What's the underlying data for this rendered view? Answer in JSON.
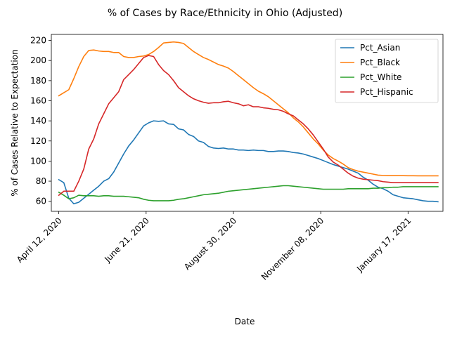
{
  "chart_data": {
    "type": "line",
    "title": "% of Cases by Race/Ethnicity in Ohio (Adjusted)",
    "xlabel": "Date",
    "ylabel": "% of Cases Relative to Expectation",
    "x_range": [
      "2020-04-06",
      "2021-02-14"
    ],
    "ylim": [
      50,
      226
    ],
    "grid": false,
    "legend_position": "top-right",
    "x_ticks": [
      {
        "date": "2020-04-12",
        "label": "April 12, 2020"
      },
      {
        "date": "2020-06-21",
        "label": "June 21, 2020"
      },
      {
        "date": "2020-08-30",
        "label": "August 30, 2020"
      },
      {
        "date": "2020-11-08",
        "label": "November 08, 2020"
      },
      {
        "date": "2021-01-17",
        "label": "January 17, 2021"
      }
    ],
    "y_ticks": [
      60,
      80,
      100,
      120,
      140,
      160,
      180,
      200,
      220
    ],
    "x": [
      "2020-04-12",
      "2020-04-16",
      "2020-04-20",
      "2020-04-24",
      "2020-04-28",
      "2020-05-02",
      "2020-05-06",
      "2020-05-10",
      "2020-05-14",
      "2020-05-18",
      "2020-05-22",
      "2020-05-26",
      "2020-05-30",
      "2020-06-03",
      "2020-06-07",
      "2020-06-11",
      "2020-06-15",
      "2020-06-19",
      "2020-06-23",
      "2020-06-27",
      "2020-07-01",
      "2020-07-05",
      "2020-07-09",
      "2020-07-13",
      "2020-07-17",
      "2020-07-21",
      "2020-07-25",
      "2020-07-29",
      "2020-08-02",
      "2020-08-06",
      "2020-08-10",
      "2020-08-14",
      "2020-08-18",
      "2020-08-22",
      "2020-08-26",
      "2020-08-30",
      "2020-09-03",
      "2020-09-07",
      "2020-09-11",
      "2020-09-15",
      "2020-09-19",
      "2020-09-23",
      "2020-09-27",
      "2020-10-01",
      "2020-10-05",
      "2020-10-09",
      "2020-10-13",
      "2020-10-17",
      "2020-10-21",
      "2020-10-25",
      "2020-10-29",
      "2020-11-02",
      "2020-11-06",
      "2020-11-10",
      "2020-11-14",
      "2020-11-18",
      "2020-11-22",
      "2020-11-26",
      "2020-11-30",
      "2020-12-04",
      "2020-12-08",
      "2020-12-12",
      "2020-12-16",
      "2020-12-20",
      "2020-12-24",
      "2020-12-28",
      "2021-01-01",
      "2021-01-05",
      "2021-01-09",
      "2021-01-13",
      "2021-01-17",
      "2021-01-21",
      "2021-01-25",
      "2021-01-29",
      "2021-02-02",
      "2021-02-06",
      "2021-02-10"
    ],
    "series": [
      {
        "name": "Pct_Asian",
        "color": "#1f77b4",
        "values": [
          81.5,
          78.5,
          63,
          57.5,
          59,
          63,
          67,
          71,
          75,
          80,
          82.5,
          89,
          98,
          107,
          115,
          121,
          128,
          135,
          138,
          140,
          139.5,
          140,
          137,
          136.5,
          132,
          131,
          126.5,
          124.5,
          120,
          118.5,
          114.5,
          113,
          112.5,
          113,
          112,
          112,
          111,
          111,
          110.5,
          111,
          110.5,
          110.5,
          109.5,
          109.5,
          110,
          110,
          109.5,
          108.5,
          108,
          107,
          105.5,
          104,
          102.5,
          100.5,
          98.5,
          96.5,
          95,
          93.5,
          92,
          90,
          88,
          84,
          81,
          77,
          74,
          72.5,
          70,
          66.5,
          65,
          63.5,
          63,
          62.5,
          61.5,
          60.5,
          60,
          60,
          59.5
        ]
      },
      {
        "name": "Pct_Black",
        "color": "#ff7f0e",
        "values": [
          165,
          168,
          171,
          182,
          194,
          204,
          210,
          210.5,
          209.5,
          209,
          209,
          208,
          208,
          204,
          203,
          203,
          204,
          204.5,
          206,
          209,
          213,
          217.5,
          218,
          218.5,
          218,
          217,
          213,
          209,
          206,
          203,
          201,
          198.5,
          196,
          194.5,
          192.5,
          189,
          185,
          181,
          177,
          173,
          169.5,
          167,
          164,
          160,
          156,
          152,
          148,
          143,
          139,
          134,
          128,
          122,
          117,
          111,
          106,
          102.5,
          100,
          97,
          93.5,
          91.5,
          90,
          89,
          88,
          87,
          86,
          85.7,
          85.5,
          85.5,
          85.5,
          85.5,
          85.4,
          85.4,
          85.3,
          85.3,
          85.3,
          85.3,
          85.3
        ]
      },
      {
        "name": "Pct_White",
        "color": "#2ca02c",
        "values": [
          69,
          66,
          62.5,
          63.5,
          66,
          65.5,
          65.5,
          65.5,
          65,
          65.5,
          65.5,
          65,
          65,
          65,
          64.5,
          64,
          63.5,
          62,
          61,
          60.5,
          60.5,
          60.5,
          60.5,
          61,
          62,
          62.5,
          63.5,
          64.5,
          65.5,
          66.5,
          67,
          67.5,
          68,
          69,
          70,
          70.5,
          71,
          71.5,
          72,
          72.5,
          73,
          73.5,
          74,
          74.5,
          75,
          75.5,
          75.5,
          75,
          74.5,
          74,
          73.5,
          73,
          72.5,
          72,
          72,
          72,
          72,
          72,
          72.5,
          72.5,
          72.5,
          72.5,
          72.5,
          73,
          73,
          73.5,
          73.5,
          74,
          74,
          74.5,
          74.5,
          74.5,
          74.5,
          74.5,
          74.5,
          74.5,
          74.5
        ]
      },
      {
        "name": "Pct_Hispanic",
        "color": "#d62728",
        "values": [
          66,
          70,
          70,
          70,
          80,
          92,
          112,
          122,
          137,
          147,
          157,
          163,
          169,
          181,
          186,
          191,
          197,
          203,
          205,
          204,
          196,
          190,
          186,
          180,
          173,
          169,
          165,
          162,
          160,
          158.5,
          157.5,
          158,
          158,
          159,
          159.5,
          158,
          157,
          155,
          156,
          154,
          154,
          153,
          152.5,
          151.5,
          151,
          149.5,
          147,
          145,
          141,
          137,
          132,
          126,
          119,
          112,
          104,
          99,
          96,
          92,
          88,
          85,
          83,
          82,
          81.5,
          81,
          80.5,
          79.5,
          79,
          78.5,
          78.5,
          78.5,
          78.5,
          78.5,
          78.5,
          78.5,
          78.5,
          78.5,
          78.5
        ]
      }
    ]
  }
}
